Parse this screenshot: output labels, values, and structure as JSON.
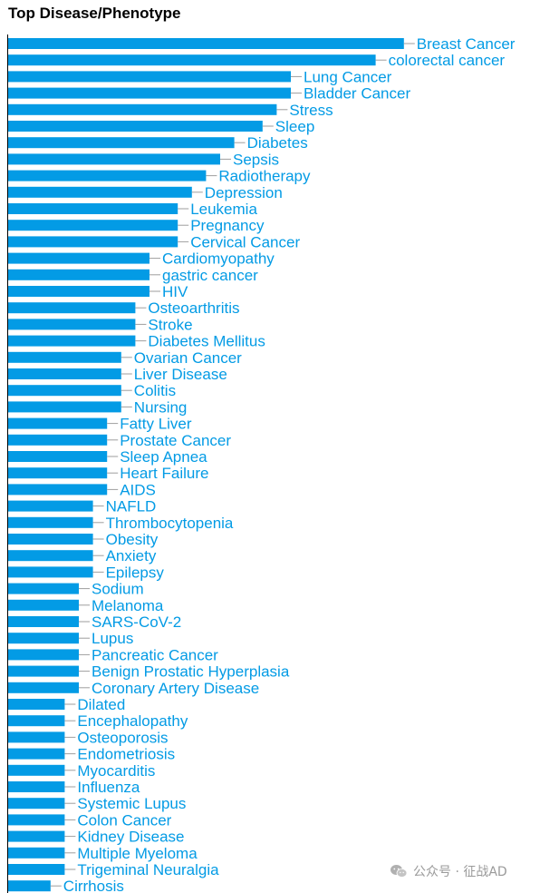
{
  "chart_data": {
    "type": "bar",
    "orientation": "horizontal",
    "title": "Top Disease/Phenotype",
    "xlabel": "",
    "ylabel": "",
    "bar_color": "#039be5",
    "xlim": [
      0,
      28
    ],
    "grid": false,
    "categories": [
      "Breast Cancer",
      "colorectal cancer",
      "Lung Cancer",
      "Bladder Cancer",
      "Stress",
      "Sleep",
      "Diabetes",
      "Sepsis",
      "Radiotherapy",
      "Depression",
      "Leukemia",
      "Pregnancy",
      "Cervical Cancer",
      "Cardiomyopathy",
      "gastric cancer",
      "HIV",
      "Osteoarthritis",
      "Stroke",
      "Diabetes Mellitus",
      "Ovarian Cancer",
      "Liver Disease",
      "Colitis",
      "Nursing",
      "Fatty Liver",
      "Prostate Cancer",
      "Sleep Apnea",
      "Heart Failure",
      "AIDS",
      "NAFLD",
      "Thrombocytopenia",
      "Obesity",
      "Anxiety",
      "Epilepsy",
      "Sodium",
      "Melanoma",
      "SARS-CoV-2",
      "Lupus",
      "Pancreatic Cancer",
      "Benign Prostatic Hyperplasia",
      "Coronary Artery Disease",
      "Dilated",
      "Encephalopathy",
      "Osteoporosis",
      "Endometriosis",
      "Myocarditis",
      "Influenza",
      "Systemic Lupus",
      "Colon Cancer",
      "Kidney Disease",
      "Multiple Myeloma",
      "Trigeminal Neuralgia",
      "Cirrhosis"
    ],
    "values": [
      28,
      26,
      20,
      20,
      19,
      18,
      16,
      15,
      14,
      13,
      12,
      12,
      12,
      10,
      10,
      10,
      9,
      9,
      9,
      8,
      8,
      8,
      8,
      7,
      7,
      7,
      7,
      7,
      6,
      6,
      6,
      6,
      6,
      5,
      5,
      5,
      5,
      5,
      5,
      5,
      4,
      4,
      4,
      4,
      4,
      4,
      4,
      4,
      4,
      4,
      4,
      3
    ]
  },
  "watermark": {
    "text": "公众号 · 征战AD",
    "icon": "wechat-icon",
    "color": "#9a9a9a"
  }
}
